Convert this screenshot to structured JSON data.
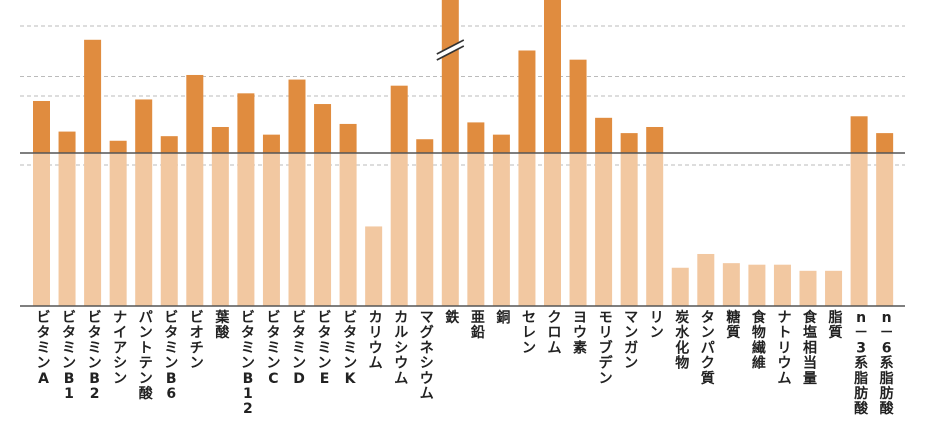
{
  "chart_data": {
    "type": "bar",
    "title": "",
    "xlabel": "",
    "ylabel": "",
    "grid": "horizontal dashed",
    "reference_level": 100,
    "ylim": [
      0,
      200
    ],
    "axis_break": {
      "category": "鉄",
      "marker": "double-slash"
    },
    "categories": [
      "ビタミンA",
      "ビタミンB1",
      "ビタミンB2",
      "ナイアシン",
      "パントテン酸",
      "ビタミンB6",
      "ビオチン",
      "葉酸",
      "ビタミンB12",
      "ビタミンC",
      "ビタミンD",
      "ビタミンE",
      "ビタミンK",
      "カリウム",
      "カルシウム",
      "マグネシウム",
      "鉄",
      "亜鉛",
      "銅",
      "セレン",
      "クロム",
      "ヨウ素",
      "モリブデン",
      "マンガン",
      "リン",
      "炭水化物",
      "タンパク質",
      "糖質",
      "食物繊維",
      "ナトリウム",
      "食塩相当量",
      "脂質",
      "n-3系脂肪酸",
      "n-6系脂肪酸"
    ],
    "values": [
      134,
      114,
      174,
      108,
      135,
      111,
      151,
      117,
      139,
      112,
      148,
      132,
      119,
      52,
      144,
      109,
      200,
      120,
      112,
      167,
      207,
      161,
      123,
      113,
      117,
      25,
      34,
      28,
      27,
      27,
      23,
      23,
      124,
      113
    ],
    "colors": {
      "above_reference": "#E08C3F",
      "below_reference": "#F2C8A1",
      "grid": "#BBBBBB",
      "reference_line": "#555555",
      "baseline": "#555555",
      "label": "#222222"
    }
  }
}
